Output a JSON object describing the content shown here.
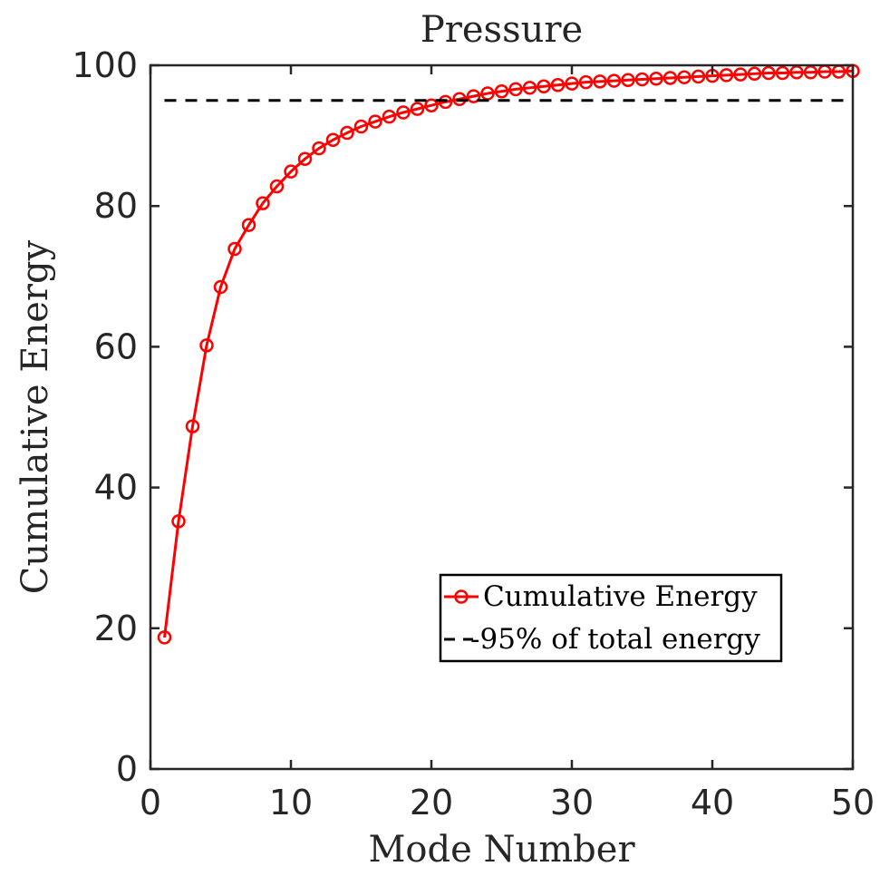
{
  "chart_data": {
    "type": "line",
    "title": "Pressure",
    "xlabel": "Mode Number",
    "ylabel": "Cumulative Energy",
    "xlim": [
      0,
      50
    ],
    "ylim": [
      0,
      100
    ],
    "x_ticks": [
      "0",
      "10",
      "20",
      "30",
      "40",
      "50"
    ],
    "y_ticks": [
      "0",
      "20",
      "40",
      "60",
      "80",
      "100"
    ],
    "grid": false,
    "legend_position": "lower-right",
    "series": [
      {
        "name": "Cumulative Energy",
        "style": "solid-line-circle-markers",
        "color": "#ff0000",
        "x": [
          1,
          2,
          3,
          4,
          5,
          6,
          7,
          8,
          9,
          10,
          11,
          12,
          13,
          14,
          15,
          16,
          17,
          18,
          19,
          20,
          21,
          22,
          23,
          24,
          25,
          26,
          27,
          28,
          29,
          30,
          31,
          32,
          33,
          34,
          35,
          36,
          37,
          38,
          39,
          40,
          41,
          42,
          43,
          44,
          45,
          46,
          47,
          48,
          49,
          50
        ],
        "values": [
          18.7,
          35.2,
          48.7,
          60.2,
          68.5,
          73.9,
          77.3,
          80.4,
          82.8,
          84.9,
          86.7,
          88.2,
          89.4,
          90.4,
          91.3,
          92.0,
          92.7,
          93.3,
          93.8,
          94.3,
          94.8,
          95.2,
          95.6,
          96.0,
          96.3,
          96.6,
          96.8,
          97.0,
          97.2,
          97.4,
          97.6,
          97.7,
          97.8,
          97.9,
          98.0,
          98.1,
          98.2,
          98.3,
          98.4,
          98.5,
          98.6,
          98.7,
          98.8,
          98.9,
          98.9,
          99.0,
          99.0,
          99.1,
          99.1,
          99.2
        ]
      },
      {
        "name": "95% of total energy",
        "legend_label": "-95% of total energy",
        "style": "dashed-line",
        "color": "#000000",
        "x": [
          1,
          50
        ],
        "values": [
          95,
          95
        ]
      }
    ]
  }
}
